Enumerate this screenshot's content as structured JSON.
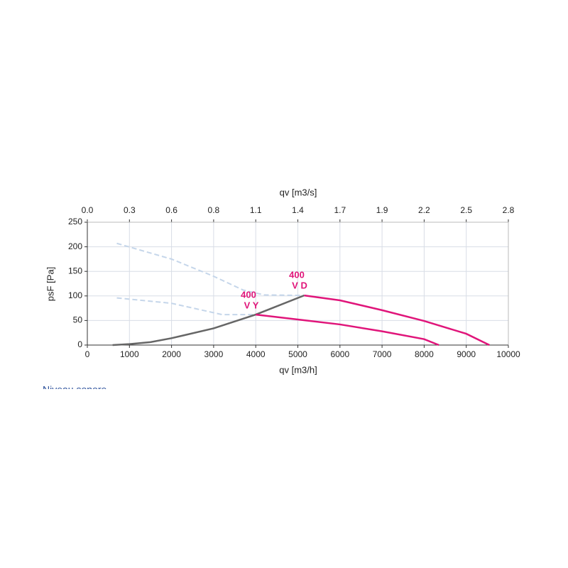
{
  "chart_data": {
    "type": "line",
    "title_top_axis": "qv [m3/s]",
    "xlabel": "qv [m3/h]",
    "ylabel": "psF [Pa]",
    "xlim": [
      0,
      10000
    ],
    "xticks": [
      0,
      1000,
      2000,
      3000,
      4000,
      5000,
      6000,
      7000,
      8000,
      9000,
      10000
    ],
    "x2lim": [
      0,
      2.7778
    ],
    "x2ticks": [
      {
        "value": 0,
        "label": "0.0"
      },
      {
        "value": 0.2778,
        "label": "0.3"
      },
      {
        "value": 0.5556,
        "label": "0.6"
      },
      {
        "value": 0.8333,
        "label": "0.8"
      },
      {
        "value": 1.1111,
        "label": "1.1"
      },
      {
        "value": 1.3889,
        "label": "1.4"
      },
      {
        "value": 1.6667,
        "label": "1.7"
      },
      {
        "value": 1.9444,
        "label": "1.9"
      },
      {
        "value": 2.2222,
        "label": "2.2"
      },
      {
        "value": 2.5,
        "label": "2.5"
      },
      {
        "value": 2.7778,
        "label": "2.8"
      }
    ],
    "ylim": [
      0,
      250
    ],
    "yticks": [
      0,
      50,
      100,
      150,
      200,
      250
    ],
    "grid": true,
    "series": [
      {
        "color": "#e0157a",
        "dashed": false,
        "x": [
          5150,
          6000,
          7000,
          8000,
          9000,
          9550
        ],
        "values": [
          101,
          91,
          71,
          49,
          23,
          0
        ]
      },
      {
        "color": "#e0157a",
        "dashed": false,
        "x": [
          4000,
          5000,
          6000,
          7000,
          8000,
          8350
        ],
        "values": [
          62,
          52,
          42,
          28,
          12,
          0
        ]
      },
      {
        "color": "#666666",
        "dashed": false,
        "x": [
          600,
          1000,
          1500,
          2000,
          3000,
          4000,
          5150
        ],
        "values": [
          0,
          2,
          6,
          14,
          34,
          62,
          101
        ]
      },
      {
        "color": "#c5d6ea",
        "dashed": true,
        "x": [
          700,
          2000,
          3000,
          3700,
          4200,
          5150
        ],
        "values": [
          207,
          175,
          140,
          112,
          102,
          101
        ]
      },
      {
        "color": "#c5d6ea",
        "dashed": true,
        "x": [
          700,
          2000,
          3200,
          4000
        ],
        "values": [
          96,
          85,
          62,
          62
        ]
      }
    ],
    "annotations": [
      {
        "lines": [
          "400",
          "V D"
        ]
      },
      {
        "lines": [
          "400",
          "V Y"
        ]
      }
    ],
    "note": "Niveau sonore"
  }
}
